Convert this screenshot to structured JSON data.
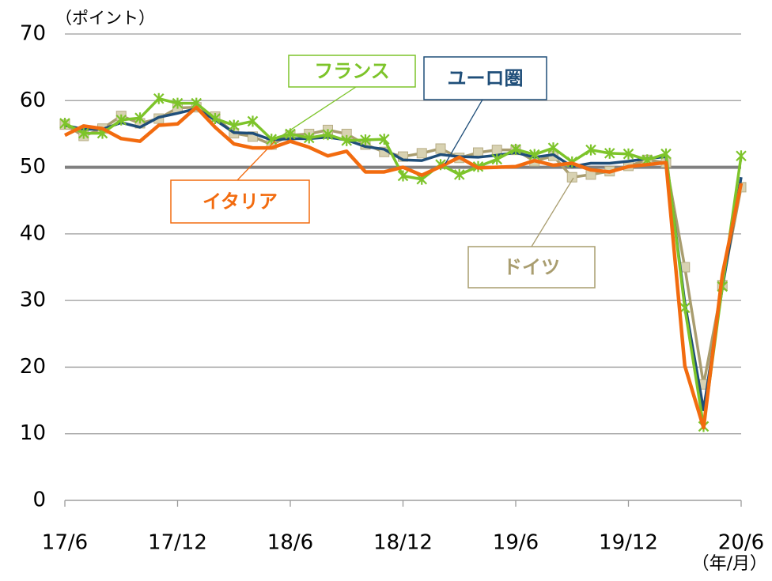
{
  "chart_data": {
    "type": "line",
    "y_axis_label": "（ポイント）",
    "x_axis_label": "（年/月）",
    "categories": [
      "17/6",
      null,
      null,
      null,
      null,
      null,
      "17/12",
      null,
      null,
      null,
      null,
      null,
      "18/6",
      null,
      null,
      null,
      null,
      null,
      "18/12",
      null,
      null,
      null,
      null,
      null,
      "19/6",
      null,
      null,
      null,
      null,
      null,
      "19/12",
      null,
      null,
      null,
      null,
      null,
      "20/6"
    ],
    "ylim": [
      0,
      70
    ],
    "yticks": [
      0,
      10,
      20,
      30,
      40,
      50,
      60,
      70
    ],
    "grid": true,
    "reference_line": 50,
    "series": [
      {
        "name": "ドイツ",
        "color": "#a99d6f",
        "marker": "square",
        "values": [
          56.4,
          54.7,
          55.8,
          57.7,
          56.6,
          57.3,
          58.9,
          59.0,
          57.6,
          55.1,
          54.6,
          53.4,
          54.8,
          55.0,
          55.6,
          55.0,
          53.4,
          52.3,
          51.6,
          52.1,
          52.8,
          51.4,
          52.2,
          52.6,
          52.6,
          50.9,
          51.7,
          48.5,
          48.9,
          49.4,
          50.2,
          51.1,
          50.7,
          35.0,
          17.4,
          32.3,
          47.0
        ]
      },
      {
        "name": "ユーロ圏",
        "color": "#1f4e79",
        "marker": "none",
        "values": [
          56.3,
          55.7,
          55.7,
          56.7,
          56.0,
          57.5,
          58.1,
          58.8,
          57.1,
          55.2,
          55.1,
          54.1,
          54.3,
          54.3,
          54.5,
          54.1,
          53.1,
          52.7,
          51.1,
          51.0,
          51.9,
          51.6,
          51.5,
          51.8,
          52.2,
          51.5,
          51.9,
          50.1,
          50.6,
          50.6,
          50.9,
          51.3,
          51.6,
          29.7,
          13.6,
          31.9,
          48.5
        ]
      },
      {
        "name": "フランス",
        "color": "#7dc42a",
        "marker": "star",
        "values": [
          56.6,
          55.1,
          55.1,
          57.1,
          57.4,
          60.3,
          59.6,
          59.6,
          57.3,
          56.3,
          56.9,
          54.2,
          55.0,
          54.4,
          54.9,
          54.0,
          54.1,
          54.2,
          48.7,
          48.2,
          50.4,
          48.9,
          50.1,
          51.2,
          52.7,
          51.9,
          52.9,
          50.8,
          52.6,
          52.1,
          52.0,
          51.1,
          52.0,
          28.9,
          11.1,
          32.1,
          51.7
        ]
      },
      {
        "name": "イタリア",
        "color": "#f26b0f",
        "marker": "none",
        "values": [
          54.8,
          56.2,
          55.8,
          54.3,
          53.9,
          56.3,
          56.5,
          59.0,
          56.0,
          53.5,
          52.9,
          52.9,
          53.9,
          53.0,
          51.7,
          52.4,
          49.3,
          49.3,
          50.0,
          48.8,
          50.1,
          51.5,
          49.9,
          50.0,
          50.1,
          51.0,
          50.3,
          50.6,
          49.6,
          49.3,
          50.1,
          50.4,
          50.7,
          20.2,
          10.9,
          33.9,
          47.6
        ]
      }
    ]
  }
}
